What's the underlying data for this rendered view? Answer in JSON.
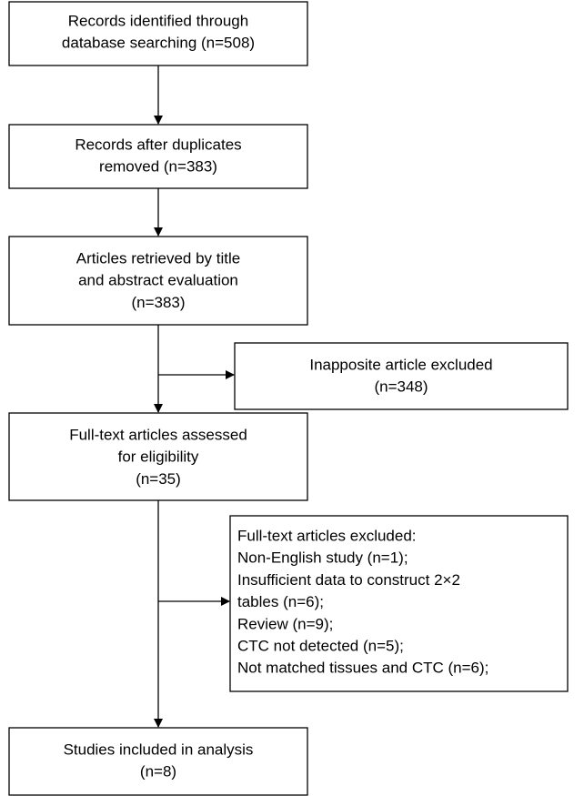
{
  "nodes": [
    {
      "lines": [
        "Records identified through",
        "database searching (n=508)"
      ]
    },
    {
      "lines": [
        "Records after duplicates",
        "removed (n=383)"
      ]
    },
    {
      "lines": [
        "Articles retrieved by title",
        "and abstract evaluation",
        "(n=383)"
      ]
    },
    {
      "lines": [
        "Inapposite article excluded",
        "(n=348)"
      ]
    },
    {
      "lines": [
        "Full-text articles assessed",
        "for eligibility",
        "(n=35)"
      ]
    },
    {
      "lines": [
        "Full-text articles excluded:",
        "Non-English study (n=1);",
        "Insufficient data to construct 2×2",
        "tables (n=6);",
        "Review (n=9);",
        "CTC not detected (n=5);",
        "Not matched tissues and CTC (n=6);"
      ]
    },
    {
      "lines": [
        "Studies included in analysis",
        "(n=8)"
      ]
    }
  ]
}
